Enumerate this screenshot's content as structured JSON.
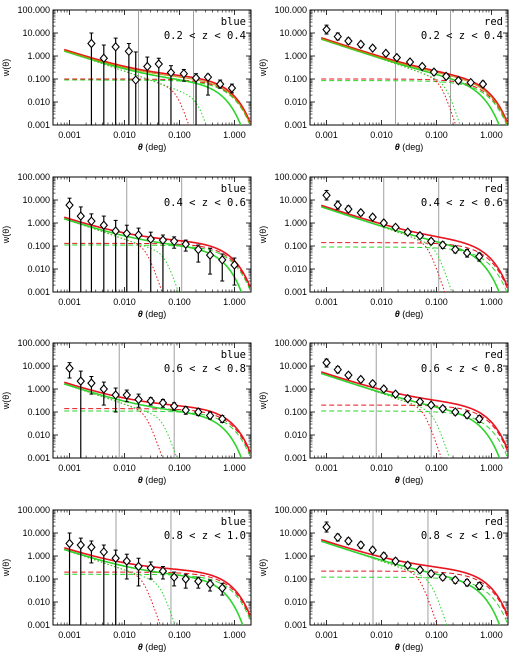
{
  "figure": {
    "xlabel_symbol": "θ",
    "xlabel_unit": " (deg)",
    "ylabel": "w(θ)"
  },
  "colors": {
    "red": "#e8141e",
    "green": "#2ed42e",
    "orange": "#b88a00",
    "grey": "#888888",
    "black": "#000000"
  },
  "chart_data": [
    {
      "type": "line",
      "color_label": "blue",
      "z_range": "0.2 < z < 0.4",
      "xlog": true,
      "ylog": true,
      "xlim": [
        0.0005,
        2.0
      ],
      "ylim": [
        0.001,
        100
      ],
      "xticks": [
        "0.001",
        "0.010",
        "0.100",
        "1.000"
      ],
      "yticks": [
        "100.000",
        "10.000",
        "1.000",
        "0.100",
        "0.010",
        "0.001"
      ],
      "vlines": [
        0.018,
        0.18
      ],
      "one_halo_cut": [
        0.09,
        0.22
      ],
      "two_halo_red": 0.1,
      "two_halo_green": 0.09,
      "amp": 0.22,
      "two_halo_model": "green-dominant",
      "points": [
        {
          "x": 0.0025,
          "y": 3.5,
          "err_hi": 10,
          "err_lo": 0.0
        },
        {
          "x": 0.0042,
          "y": 0.8,
          "err_hi": 3,
          "err_lo": 0.0
        },
        {
          "x": 0.0069,
          "y": 2.5,
          "err_hi": 6,
          "err_lo": 0.0
        },
        {
          "x": 0.012,
          "y": 1.6,
          "err_hi": 3.5,
          "err_lo": 0.0
        },
        {
          "x": 0.016,
          "y": 0.09,
          "err_hi": 1.5,
          "err_lo": 0.0
        },
        {
          "x": 0.026,
          "y": 0.35,
          "err_hi": 0.9,
          "err_lo": 0.0
        },
        {
          "x": 0.042,
          "y": 0.45,
          "err_hi": 0.8,
          "err_lo": 0.0
        },
        {
          "x": 0.07,
          "y": 0.19,
          "err_hi": 0.38,
          "err_lo": 0.0
        },
        {
          "x": 0.12,
          "y": 0.17,
          "err_hi": 0.26,
          "err_lo": 0.08
        },
        {
          "x": 0.2,
          "y": 0.11,
          "err_hi": 0.17,
          "err_lo": 0.0
        },
        {
          "x": 0.33,
          "y": 0.12,
          "err_hi": 0.16,
          "err_lo": 0.02
        },
        {
          "x": 0.55,
          "y": 0.06,
          "err_hi": 0.09,
          "err_lo": 0.04
        },
        {
          "x": 0.9,
          "y": 0.04,
          "err_hi": 0.06,
          "err_lo": 0.025
        }
      ]
    },
    {
      "type": "line",
      "color_label": "red",
      "z_range": "0.2 < z < 0.4",
      "xlog": true,
      "ylog": true,
      "xlim": [
        0.0005,
        2.0
      ],
      "ylim": [
        0.001,
        100
      ],
      "xticks": [
        "0.001",
        "0.010",
        "0.100",
        "1.000"
      ],
      "yticks": [
        "100.000",
        "10.000",
        "1.000",
        "0.100",
        "0.010",
        "0.001"
      ],
      "vlines": [
        0.018,
        0.18
      ],
      "one_halo_cut": [
        0.12,
        0.15
      ],
      "two_halo_red": 0.1,
      "two_halo_green": 0.085,
      "amp": 0.75,
      "two_halo_model": "red-dominant",
      "points": [
        {
          "x": 0.001,
          "y": 14,
          "err_hi": 22,
          "err_lo": 9
        },
        {
          "x": 0.0016,
          "y": 7,
          "err_hi": 10,
          "err_lo": 5
        },
        {
          "x": 0.0025,
          "y": 4.5,
          "err_hi": 6,
          "err_lo": 3.3
        },
        {
          "x": 0.0042,
          "y": 3.2,
          "err_hi": 4,
          "err_lo": 2.4
        },
        {
          "x": 0.0069,
          "y": 2.2,
          "err_hi": 2.8,
          "err_lo": 1.8
        },
        {
          "x": 0.012,
          "y": 1.3,
          "err_hi": 1.6,
          "err_lo": 1.0
        },
        {
          "x": 0.019,
          "y": 0.85,
          "err_hi": 1.05,
          "err_lo": 0.7
        },
        {
          "x": 0.033,
          "y": 0.55,
          "err_hi": 0.68,
          "err_lo": 0.44
        },
        {
          "x": 0.055,
          "y": 0.35,
          "err_hi": 0.44,
          "err_lo": 0.28
        },
        {
          "x": 0.09,
          "y": 0.2,
          "err_hi": 0.26,
          "err_lo": 0.15
        },
        {
          "x": 0.15,
          "y": 0.13,
          "err_hi": 0.17,
          "err_lo": 0.1
        },
        {
          "x": 0.25,
          "y": 0.085,
          "err_hi": 0.11,
          "err_lo": 0.065
        },
        {
          "x": 0.42,
          "y": 0.07,
          "err_hi": 0.09,
          "err_lo": 0.055
        },
        {
          "x": 0.7,
          "y": 0.06,
          "err_hi": 0.08,
          "err_lo": 0.045
        }
      ]
    },
    {
      "type": "line",
      "color_label": "blue",
      "z_range": "0.4 < z < 0.6",
      "xlog": true,
      "ylog": true,
      "xlim": [
        0.0005,
        2.0
      ],
      "ylim": [
        0.001,
        100
      ],
      "xticks": [
        "0.001",
        "0.010",
        "0.100",
        "1.000"
      ],
      "yticks": [
        "100.000",
        "10.000",
        "1.000",
        "0.100",
        "0.010",
        "0.001"
      ],
      "vlines": [
        0.011,
        0.11
      ],
      "one_halo_cut": [
        0.025,
        0.055
      ],
      "two_halo_red": 0.13,
      "two_halo_green": 0.11,
      "amp": 0.2,
      "two_halo_model": "red-dominant",
      "points": [
        {
          "x": 0.001,
          "y": 6,
          "err_hi": 12,
          "err_lo": 0.0
        },
        {
          "x": 0.0016,
          "y": 2.0,
          "err_hi": 5,
          "err_lo": 0.0
        },
        {
          "x": 0.0025,
          "y": 1.2,
          "err_hi": 2.5,
          "err_lo": 0.0
        },
        {
          "x": 0.0042,
          "y": 0.8,
          "err_hi": 2.0,
          "err_lo": 0.0
        },
        {
          "x": 0.0069,
          "y": 0.45,
          "err_hi": 1.3,
          "err_lo": 0.0
        },
        {
          "x": 0.011,
          "y": 0.35,
          "err_hi": 0.8,
          "err_lo": 0.0
        },
        {
          "x": 0.018,
          "y": 0.3,
          "err_hi": 0.6,
          "err_lo": 0.0
        },
        {
          "x": 0.03,
          "y": 0.2,
          "err_hi": 0.4,
          "err_lo": 0.0
        },
        {
          "x": 0.05,
          "y": 0.18,
          "err_hi": 0.3,
          "err_lo": 0.0
        },
        {
          "x": 0.08,
          "y": 0.16,
          "err_hi": 0.25,
          "err_lo": 0.08
        },
        {
          "x": 0.13,
          "y": 0.12,
          "err_hi": 0.18,
          "err_lo": 0.06
        },
        {
          "x": 0.22,
          "y": 0.07,
          "err_hi": 0.11,
          "err_lo": 0.02
        },
        {
          "x": 0.36,
          "y": 0.04,
          "err_hi": 0.08,
          "err_lo": 0.006
        },
        {
          "x": 0.6,
          "y": 0.025,
          "err_hi": 0.045,
          "err_lo": 0.003
        },
        {
          "x": 1.0,
          "y": 0.015,
          "err_hi": 0.03,
          "err_lo": 0.002
        }
      ]
    },
    {
      "type": "line",
      "color_label": "red",
      "z_range": "0.4 < z < 0.6",
      "xlog": true,
      "ylog": true,
      "xlim": [
        0.0005,
        2.0
      ],
      "ylim": [
        0.001,
        100
      ],
      "xticks": [
        "0.001",
        "0.010",
        "0.100",
        "1.000"
      ],
      "yticks": [
        "100.000",
        "10.000",
        "1.000",
        "0.100",
        "0.010",
        "0.001"
      ],
      "vlines": [
        0.011,
        0.11
      ],
      "one_halo_cut": [
        0.07,
        0.1
      ],
      "two_halo_red": 0.14,
      "two_halo_green": 0.09,
      "amp": 0.7,
      "two_halo_model": "red-dominant",
      "points": [
        {
          "x": 0.001,
          "y": 16,
          "err_hi": 26,
          "err_lo": 10
        },
        {
          "x": 0.0016,
          "y": 6,
          "err_hi": 9,
          "err_lo": 4
        },
        {
          "x": 0.0025,
          "y": 4.0,
          "err_hi": 5.5,
          "err_lo": 3
        },
        {
          "x": 0.0042,
          "y": 2.8,
          "err_hi": 3.6,
          "err_lo": 2.1
        },
        {
          "x": 0.0069,
          "y": 1.8,
          "err_hi": 2.3,
          "err_lo": 1.4
        },
        {
          "x": 0.011,
          "y": 1.0,
          "err_hi": 1.3,
          "err_lo": 0.8
        },
        {
          "x": 0.018,
          "y": 0.65,
          "err_hi": 0.82,
          "err_lo": 0.52
        },
        {
          "x": 0.03,
          "y": 0.4,
          "err_hi": 0.5,
          "err_lo": 0.32
        },
        {
          "x": 0.05,
          "y": 0.28,
          "err_hi": 0.35,
          "err_lo": 0.22
        },
        {
          "x": 0.08,
          "y": 0.16,
          "err_hi": 0.21,
          "err_lo": 0.12
        },
        {
          "x": 0.13,
          "y": 0.11,
          "err_hi": 0.15,
          "err_lo": 0.08
        },
        {
          "x": 0.22,
          "y": 0.07,
          "err_hi": 0.1,
          "err_lo": 0.05
        },
        {
          "x": 0.36,
          "y": 0.05,
          "err_hi": 0.07,
          "err_lo": 0.033
        },
        {
          "x": 0.6,
          "y": 0.035,
          "err_hi": 0.05,
          "err_lo": 0.022
        }
      ]
    },
    {
      "type": "line",
      "color_label": "blue",
      "z_range": "0.6 < z < 0.8",
      "xlog": true,
      "ylog": true,
      "xlim": [
        0.0005,
        2.0
      ],
      "ylim": [
        0.001,
        100
      ],
      "xticks": [
        "0.001",
        "0.010",
        "0.100",
        "1.000"
      ],
      "yticks": [
        "100.000",
        "10.000",
        "1.000",
        "0.100",
        "0.010",
        "0.001"
      ],
      "vlines": [
        0.008,
        0.08
      ],
      "one_halo_cut": [
        0.025,
        0.05
      ],
      "two_halo_red": 0.14,
      "two_halo_green": 0.11,
      "amp": 0.22,
      "two_halo_model": "red-dominant",
      "points": [
        {
          "x": 0.001,
          "y": 8,
          "err_hi": 14,
          "err_lo": 3
        },
        {
          "x": 0.0016,
          "y": 2.2,
          "err_hi": 6,
          "err_lo": 0.0
        },
        {
          "x": 0.0025,
          "y": 1.8,
          "err_hi": 3.5,
          "err_lo": 0.6
        },
        {
          "x": 0.0042,
          "y": 1.0,
          "err_hi": 2.0,
          "err_lo": 0.2
        },
        {
          "x": 0.0069,
          "y": 0.55,
          "err_hi": 1.1,
          "err_lo": 0.1
        },
        {
          "x": 0.011,
          "y": 0.55,
          "err_hi": 0.9,
          "err_lo": 0.28
        },
        {
          "x": 0.018,
          "y": 0.35,
          "err_hi": 0.6,
          "err_lo": 0.16
        },
        {
          "x": 0.03,
          "y": 0.3,
          "err_hi": 0.42,
          "err_lo": 0.2
        },
        {
          "x": 0.05,
          "y": 0.25,
          "err_hi": 0.35,
          "err_lo": 0.16
        },
        {
          "x": 0.08,
          "y": 0.18,
          "err_hi": 0.25,
          "err_lo": 0.12
        },
        {
          "x": 0.13,
          "y": 0.12,
          "err_hi": 0.17,
          "err_lo": 0.08
        },
        {
          "x": 0.22,
          "y": 0.1,
          "err_hi": 0.14,
          "err_lo": 0.07
        },
        {
          "x": 0.36,
          "y": 0.07,
          "err_hi": 0.1,
          "err_lo": 0.05
        },
        {
          "x": 0.6,
          "y": 0.05,
          "err_hi": 0.07,
          "err_lo": 0.035
        }
      ]
    },
    {
      "type": "line",
      "color_label": "red",
      "z_range": "0.6 < z < 0.8",
      "xlog": true,
      "ylog": true,
      "xlim": [
        0.0005,
        2.0
      ],
      "ylim": [
        0.001,
        100
      ],
      "xticks": [
        "0.001",
        "0.010",
        "0.100",
        "1.000"
      ],
      "yticks": [
        "100.000",
        "10.000",
        "1.000",
        "0.100",
        "0.010",
        "0.001"
      ],
      "vlines": [
        0.008,
        0.08
      ],
      "one_halo_cut": [
        0.06,
        0.09
      ],
      "two_halo_red": 0.2,
      "two_halo_green": 0.11,
      "amp": 0.65,
      "two_halo_model": "red-dominant",
      "points": [
        {
          "x": 0.001,
          "y": 14,
          "err_hi": 20,
          "err_lo": 9
        },
        {
          "x": 0.0016,
          "y": 7,
          "err_hi": 9.5,
          "err_lo": 5
        },
        {
          "x": 0.0025,
          "y": 4.0,
          "err_hi": 5.2,
          "err_lo": 3
        },
        {
          "x": 0.0042,
          "y": 2.6,
          "err_hi": 3.3,
          "err_lo": 2.0
        },
        {
          "x": 0.0069,
          "y": 1.7,
          "err_hi": 2.2,
          "err_lo": 1.3
        },
        {
          "x": 0.011,
          "y": 1.0,
          "err_hi": 1.3,
          "err_lo": 0.8
        },
        {
          "x": 0.018,
          "y": 0.6,
          "err_hi": 0.75,
          "err_lo": 0.48
        },
        {
          "x": 0.03,
          "y": 0.38,
          "err_hi": 0.48,
          "err_lo": 0.3
        },
        {
          "x": 0.05,
          "y": 0.28,
          "err_hi": 0.35,
          "err_lo": 0.22
        },
        {
          "x": 0.08,
          "y": 0.2,
          "err_hi": 0.26,
          "err_lo": 0.16
        },
        {
          "x": 0.13,
          "y": 0.14,
          "err_hi": 0.18,
          "err_lo": 0.11
        },
        {
          "x": 0.22,
          "y": 0.1,
          "err_hi": 0.13,
          "err_lo": 0.075
        },
        {
          "x": 0.36,
          "y": 0.075,
          "err_hi": 0.1,
          "err_lo": 0.055
        },
        {
          "x": 0.6,
          "y": 0.05,
          "err_hi": 0.07,
          "err_lo": 0.035
        }
      ]
    },
    {
      "type": "line",
      "color_label": "blue",
      "z_range": "0.8 < z < 1.0",
      "xlog": true,
      "ylog": true,
      "xlim": [
        0.0005,
        2.0
      ],
      "ylim": [
        0.001,
        100
      ],
      "xticks": [
        "0.001",
        "0.010",
        "0.100",
        "1.000"
      ],
      "yticks": [
        "100.000",
        "10.000",
        "1.000",
        "0.100",
        "0.010",
        "0.001"
      ],
      "vlines": [
        0.007,
        0.07
      ],
      "one_halo_cut": [
        0.022,
        0.045
      ],
      "two_halo_red": 0.2,
      "two_halo_green": 0.16,
      "amp": 0.25,
      "two_halo_model": "red-dominant",
      "points": [
        {
          "x": 0.001,
          "y": 3.5,
          "err_hi": 10,
          "err_lo": 0.0
        },
        {
          "x": 0.0016,
          "y": 3.0,
          "err_hi": 6,
          "err_lo": 0.0
        },
        {
          "x": 0.0025,
          "y": 2.4,
          "err_hi": 4.5,
          "err_lo": 0.5
        },
        {
          "x": 0.0042,
          "y": 1.5,
          "err_hi": 3,
          "err_lo": 0.0
        },
        {
          "x": 0.0069,
          "y": 0.8,
          "err_hi": 1.8,
          "err_lo": 0.0
        },
        {
          "x": 0.011,
          "y": 0.6,
          "err_hi": 1.2,
          "err_lo": 0.1
        },
        {
          "x": 0.018,
          "y": 0.35,
          "err_hi": 0.8,
          "err_lo": 0.05
        },
        {
          "x": 0.03,
          "y": 0.3,
          "err_hi": 0.55,
          "err_lo": 0.1
        },
        {
          "x": 0.05,
          "y": 0.22,
          "err_hi": 0.35,
          "err_lo": 0.1
        },
        {
          "x": 0.08,
          "y": 0.12,
          "err_hi": 0.2,
          "err_lo": 0.05
        },
        {
          "x": 0.13,
          "y": 0.1,
          "err_hi": 0.16,
          "err_lo": 0.04
        },
        {
          "x": 0.22,
          "y": 0.08,
          "err_hi": 0.12,
          "err_lo": 0.04
        },
        {
          "x": 0.36,
          "y": 0.06,
          "err_hi": 0.09,
          "err_lo": 0.03
        },
        {
          "x": 0.6,
          "y": 0.04,
          "err_hi": 0.065,
          "err_lo": 0.02
        }
      ]
    },
    {
      "type": "line",
      "color_label": "red",
      "z_range": "0.8 < z < 1.0",
      "xlog": true,
      "ylog": true,
      "xlim": [
        0.0005,
        2.0
      ],
      "ylim": [
        0.001,
        100
      ],
      "xticks": [
        "0.001",
        "0.010",
        "0.100",
        "1.000"
      ],
      "yticks": [
        "100.000",
        "10.000",
        "1.000",
        "0.100",
        "0.010",
        "0.001"
      ],
      "vlines": [
        0.007,
        0.07
      ],
      "one_halo_cut": [
        0.05,
        0.08
      ],
      "two_halo_red": 0.22,
      "two_halo_green": 0.12,
      "amp": 0.6,
      "two_halo_model": "red-dominant",
      "points": [
        {
          "x": 0.001,
          "y": 18,
          "err_hi": 30,
          "err_lo": 11
        },
        {
          "x": 0.0016,
          "y": 6.5,
          "err_hi": 9,
          "err_lo": 4.5
        },
        {
          "x": 0.0025,
          "y": 4.5,
          "err_hi": 6,
          "err_lo": 3.3
        },
        {
          "x": 0.0042,
          "y": 3.0,
          "err_hi": 4,
          "err_lo": 2.2
        },
        {
          "x": 0.0069,
          "y": 1.8,
          "err_hi": 2.4,
          "err_lo": 1.4
        },
        {
          "x": 0.011,
          "y": 1.0,
          "err_hi": 1.35,
          "err_lo": 0.75
        },
        {
          "x": 0.018,
          "y": 0.6,
          "err_hi": 0.8,
          "err_lo": 0.45
        },
        {
          "x": 0.03,
          "y": 0.4,
          "err_hi": 0.53,
          "err_lo": 0.3
        },
        {
          "x": 0.05,
          "y": 0.25,
          "err_hi": 0.33,
          "err_lo": 0.19
        },
        {
          "x": 0.08,
          "y": 0.17,
          "err_hi": 0.23,
          "err_lo": 0.13
        },
        {
          "x": 0.13,
          "y": 0.12,
          "err_hi": 0.16,
          "err_lo": 0.09
        },
        {
          "x": 0.22,
          "y": 0.09,
          "err_hi": 0.12,
          "err_lo": 0.065
        },
        {
          "x": 0.36,
          "y": 0.07,
          "err_hi": 0.095,
          "err_lo": 0.05
        },
        {
          "x": 0.6,
          "y": 0.05,
          "err_hi": 0.07,
          "err_lo": 0.035
        }
      ]
    }
  ]
}
